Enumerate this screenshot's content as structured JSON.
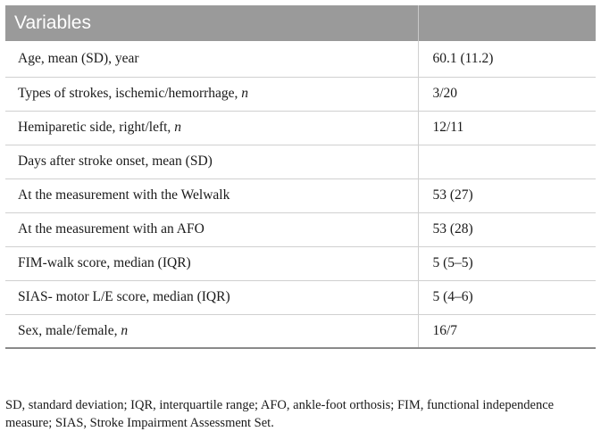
{
  "table": {
    "header": [
      "Variables",
      ""
    ],
    "rows": [
      {
        "variable": "Age, mean (SD), year",
        "italic_suffix": "",
        "value": "60.1 (11.2)"
      },
      {
        "variable": "Types of strokes, ischemic/hemorrhage, ",
        "italic_suffix": "n",
        "value": "3/20"
      },
      {
        "variable": "Hemiparetic side, right/left, ",
        "italic_suffix": "n",
        "value": "12/11"
      },
      {
        "variable": "Days after stroke onset, mean (SD)",
        "italic_suffix": "",
        "value": ""
      },
      {
        "variable": "At the measurement with the Welwalk",
        "italic_suffix": "",
        "value": "53 (27)"
      },
      {
        "variable": "At the measurement with an AFO",
        "italic_suffix": "",
        "value": "53 (28)"
      },
      {
        "variable": "FIM-walk score, median (IQR)",
        "italic_suffix": "",
        "value": "5 (5–5)"
      },
      {
        "variable": "SIAS- motor L/E score, median (IQR)",
        "italic_suffix": "",
        "value": "5 (4–6)"
      },
      {
        "variable": "Sex, male/female, ",
        "italic_suffix": "n",
        "value": "16/7"
      }
    ]
  },
  "footnote": "SD, standard deviation; IQR, interquartile range; AFO, ankle-foot orthosis; FIM, functional independence measure; SIAS, Stroke Impairment Assessment Set."
}
